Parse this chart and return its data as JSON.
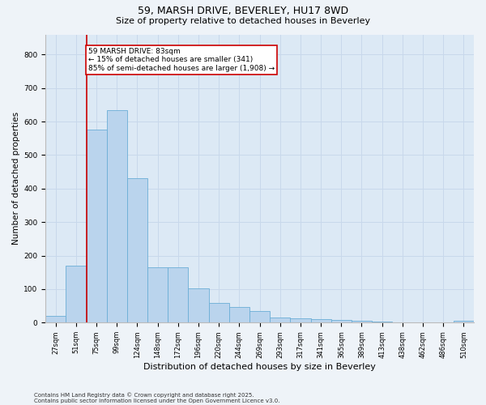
{
  "title_line1": "59, MARSH DRIVE, BEVERLEY, HU17 8WD",
  "title_line2": "Size of property relative to detached houses in Beverley",
  "xlabel": "Distribution of detached houses by size in Beverley",
  "ylabel": "Number of detached properties",
  "bin_labels": [
    "27sqm",
    "51sqm",
    "75sqm",
    "99sqm",
    "124sqm",
    "148sqm",
    "172sqm",
    "196sqm",
    "220sqm",
    "244sqm",
    "269sqm",
    "293sqm",
    "317sqm",
    "341sqm",
    "365sqm",
    "389sqm",
    "413sqm",
    "438sqm",
    "462sqm",
    "486sqm",
    "510sqm"
  ],
  "bar_values": [
    20,
    170,
    575,
    635,
    430,
    165,
    165,
    103,
    58,
    47,
    35,
    15,
    12,
    10,
    8,
    5,
    4,
    2,
    1,
    0,
    5
  ],
  "bar_color": "#bad4ed",
  "bar_edge_color": "#6baed6",
  "vline_x_idx": 1.5,
  "property_label": "59 MARSH DRIVE: 83sqm",
  "annotation_line1": "← 15% of detached houses are smaller (341)",
  "annotation_line2": "85% of semi-detached houses are larger (1,908) →",
  "annotation_box_color": "#ffffff",
  "annotation_box_edge": "#cc0000",
  "vline_color": "#cc0000",
  "ylim": [
    0,
    860
  ],
  "yticks": [
    0,
    100,
    200,
    300,
    400,
    500,
    600,
    700,
    800
  ],
  "grid_color": "#c8d8eb",
  "plot_bg_color": "#dce9f5",
  "fig_bg_color": "#eef3f8",
  "footnote1": "Contains HM Land Registry data © Crown copyright and database right 2025.",
  "footnote2": "Contains public sector information licensed under the Open Government Licence v3.0.",
  "title_fontsize": 9,
  "subtitle_fontsize": 8,
  "ylabel_fontsize": 7.5,
  "xlabel_fontsize": 8,
  "tick_fontsize": 6,
  "annot_fontsize": 6.5,
  "footnote_fontsize": 5
}
